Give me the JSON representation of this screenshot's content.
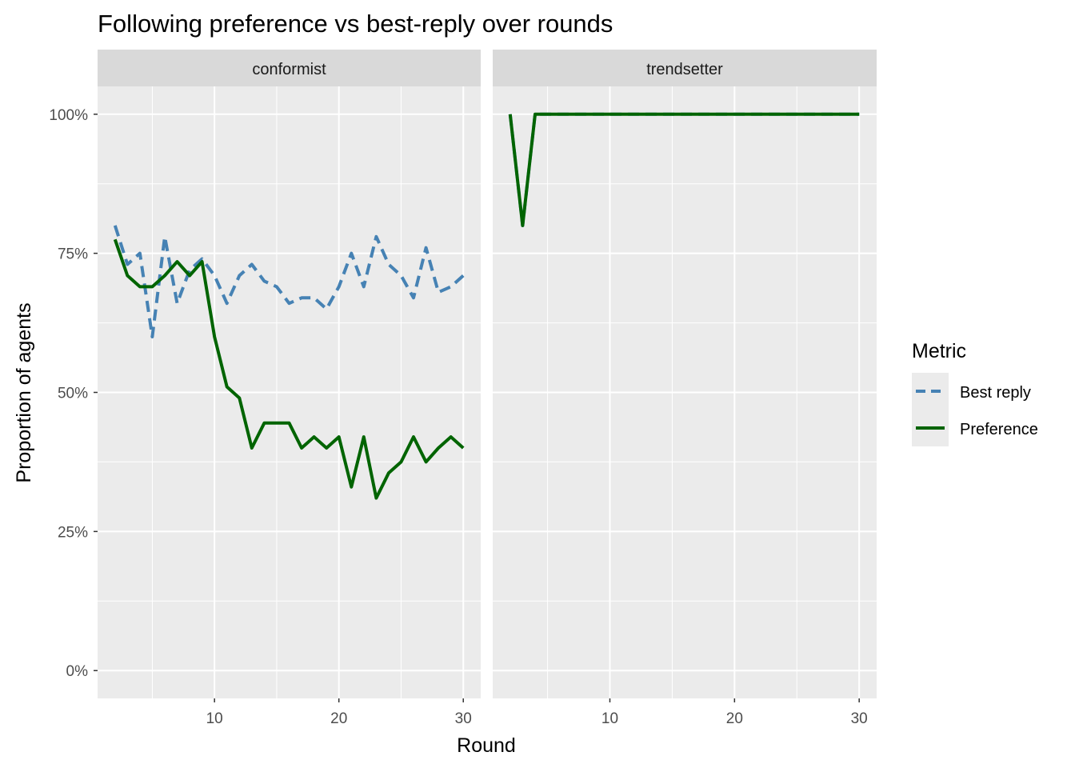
{
  "chart_data": {
    "type": "line",
    "title": "Following preference vs best-reply over rounds",
    "xlabel": "Round",
    "ylabel": "Proportion of agents",
    "xlim": [
      0.6,
      31.4
    ],
    "ylim": [
      -0.05,
      1.05
    ],
    "x_ticks": [
      10,
      20,
      30
    ],
    "y_ticks": [
      0,
      0.25,
      0.5,
      0.75,
      1.0
    ],
    "y_tick_labels": [
      "0%",
      "25%",
      "50%",
      "75%",
      "100%"
    ],
    "grid": true,
    "legend": {
      "title": "Metric",
      "position": "right",
      "entries": [
        {
          "name": "Best reply",
          "color": "#4682B4",
          "dash": "dashed"
        },
        {
          "name": "Preference",
          "color": "#006400",
          "dash": "solid"
        }
      ]
    },
    "panels": [
      {
        "strip": "conformist",
        "series": [
          {
            "name": "Best reply",
            "color": "#4682B4",
            "dash": "dashed",
            "x": [
              2,
              3,
              4,
              5,
              6,
              7,
              8,
              9,
              10,
              11,
              12,
              13,
              14,
              15,
              16,
              17,
              18,
              19,
              20,
              21,
              22,
              23,
              24,
              25,
              26,
              27,
              28,
              29,
              30
            ],
            "y": [
              0.8,
              0.73,
              0.75,
              0.6,
              0.78,
              0.66,
              0.72,
              0.74,
              0.71,
              0.66,
              0.71,
              0.73,
              0.7,
              0.69,
              0.66,
              0.67,
              0.67,
              0.65,
              0.69,
              0.75,
              0.69,
              0.78,
              0.73,
              0.71,
              0.67,
              0.76,
              0.68,
              0.69,
              0.71
            ]
          },
          {
            "name": "Preference",
            "color": "#006400",
            "dash": "solid",
            "x": [
              2,
              3,
              4,
              5,
              6,
              7,
              8,
              9,
              10,
              11,
              12,
              13,
              14,
              15,
              16,
              17,
              18,
              19,
              20,
              21,
              22,
              23,
              24,
              25,
              26,
              27,
              28,
              29,
              30
            ],
            "y": [
              0.775,
              0.71,
              0.69,
              0.69,
              0.71,
              0.735,
              0.71,
              0.735,
              0.6,
              0.51,
              0.49,
              0.4,
              0.445,
              0.445,
              0.445,
              0.4,
              0.42,
              0.4,
              0.42,
              0.33,
              0.42,
              0.31,
              0.355,
              0.375,
              0.42,
              0.375,
              0.4,
              0.42,
              0.4
            ]
          }
        ]
      },
      {
        "strip": "trendsetter",
        "series": [
          {
            "name": "Best reply",
            "color": "#4682B4",
            "dash": "dashed",
            "x": [
              2,
              3,
              4,
              5,
              6,
              7,
              8,
              9,
              10,
              11,
              12,
              13,
              14,
              15,
              16,
              17,
              18,
              19,
              20,
              21,
              22,
              23,
              24,
              25,
              26,
              27,
              28,
              29,
              30
            ],
            "y": [
              1.0,
              0.8,
              1.0,
              1.0,
              1.0,
              1.0,
              1.0,
              1.0,
              1.0,
              1.0,
              1.0,
              1.0,
              1.0,
              1.0,
              1.0,
              1.0,
              1.0,
              1.0,
              1.0,
              1.0,
              1.0,
              1.0,
              1.0,
              1.0,
              1.0,
              1.0,
              1.0,
              1.0,
              1.0
            ]
          },
          {
            "name": "Preference",
            "color": "#006400",
            "dash": "solid",
            "x": [
              2,
              3,
              4,
              5,
              6,
              7,
              8,
              9,
              10,
              11,
              12,
              13,
              14,
              15,
              16,
              17,
              18,
              19,
              20,
              21,
              22,
              23,
              24,
              25,
              26,
              27,
              28,
              29,
              30
            ],
            "y": [
              1.0,
              0.8,
              1.0,
              1.0,
              1.0,
              1.0,
              1.0,
              1.0,
              1.0,
              1.0,
              1.0,
              1.0,
              1.0,
              1.0,
              1.0,
              1.0,
              1.0,
              1.0,
              1.0,
              1.0,
              1.0,
              1.0,
              1.0,
              1.0,
              1.0,
              1.0,
              1.0,
              1.0,
              1.0
            ]
          }
        ]
      }
    ]
  }
}
